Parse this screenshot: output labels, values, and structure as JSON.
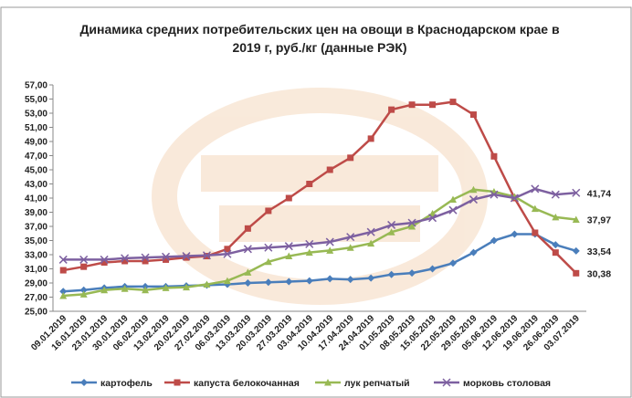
{
  "chart_data": {
    "type": "line",
    "title": "Динамика средних потребительских цен на овощи в Краснодарском крае в 2019 г, руб./кг (данные РЭК)",
    "categories": [
      "09.01.2019",
      "16.01.2019",
      "23.01.2019",
      "30.01.2019",
      "06.02.2019",
      "13.02.2019",
      "20.02.2019",
      "27.02.2019",
      "06.03.2019",
      "13.03.2019",
      "20.03.2019",
      "27.03.2019",
      "03.04.2019",
      "10.04.2019",
      "17.04.2019",
      "24.04.2019",
      "01.05.2019",
      "08.05.2019",
      "15.05.2019",
      "22.05.2019",
      "29.05.2019",
      "05.06.2019",
      "12.06.2019",
      "19.06.2019",
      "26.06.2019",
      "03.07.2019"
    ],
    "series": [
      {
        "name": "картофель",
        "color": "#4a7ebb",
        "marker": "diamond",
        "values": [
          27.8,
          28.0,
          28.3,
          28.5,
          28.5,
          28.5,
          28.6,
          28.7,
          28.8,
          29.0,
          29.1,
          29.2,
          29.3,
          29.6,
          29.5,
          29.7,
          30.2,
          30.4,
          31.0,
          31.8,
          33.3,
          35.0,
          35.9,
          35.9,
          34.4,
          33.54
        ],
        "value_labels": [
          null,
          null,
          null,
          null,
          null,
          null,
          null,
          null,
          null,
          null,
          null,
          null,
          null,
          null,
          null,
          null,
          null,
          null,
          null,
          null,
          null,
          null,
          null,
          null,
          null,
          "33,54"
        ]
      },
      {
        "name": "капуста белокочанная",
        "color": "#be4b48",
        "marker": "square",
        "values": [
          30.8,
          31.3,
          31.9,
          32.1,
          32.1,
          32.3,
          32.6,
          32.8,
          33.8,
          36.7,
          39.2,
          41.0,
          43.0,
          45.0,
          46.7,
          49.4,
          53.5,
          54.2,
          54.2,
          54.6,
          52.8,
          46.9,
          41.0,
          36.1,
          33.3,
          30.38
        ],
        "value_labels": [
          null,
          null,
          null,
          null,
          null,
          null,
          null,
          null,
          null,
          null,
          null,
          null,
          null,
          null,
          null,
          null,
          null,
          null,
          null,
          null,
          null,
          null,
          null,
          null,
          null,
          "30,38"
        ]
      },
      {
        "name": "лук репчатый",
        "color": "#98b954",
        "marker": "triangle",
        "values": [
          27.2,
          27.4,
          28.0,
          28.2,
          28.0,
          28.3,
          28.4,
          28.8,
          29.3,
          30.5,
          32.0,
          32.8,
          33.3,
          33.6,
          34.0,
          34.6,
          36.2,
          37.0,
          38.8,
          40.8,
          42.2,
          41.9,
          41.2,
          39.5,
          38.3,
          37.97
        ],
        "value_labels": [
          null,
          null,
          null,
          null,
          null,
          null,
          null,
          null,
          null,
          null,
          null,
          null,
          null,
          null,
          null,
          null,
          null,
          null,
          null,
          null,
          null,
          null,
          null,
          null,
          null,
          "37,97"
        ]
      },
      {
        "name": "морковь столовая",
        "color": "#7d60a0",
        "marker": "x",
        "values": [
          32.3,
          32.3,
          32.3,
          32.5,
          32.6,
          32.7,
          32.8,
          32.9,
          33.1,
          33.8,
          34.0,
          34.2,
          34.5,
          34.8,
          35.5,
          36.2,
          37.2,
          37.5,
          38.2,
          39.3,
          40.8,
          41.5,
          41.0,
          42.3,
          41.5,
          41.74
        ],
        "value_labels": [
          null,
          null,
          null,
          null,
          null,
          null,
          null,
          null,
          null,
          null,
          null,
          null,
          null,
          null,
          null,
          null,
          null,
          null,
          null,
          null,
          null,
          null,
          null,
          null,
          null,
          "41,74"
        ]
      }
    ],
    "ylim": [
      25,
      57
    ],
    "yticks": [
      {
        "value": 25,
        "label": "25,00"
      },
      {
        "value": 27,
        "label": "27,00"
      },
      {
        "value": 29,
        "label": "29,00"
      },
      {
        "value": 31,
        "label": "31,00"
      },
      {
        "value": 33,
        "label": "33,00"
      },
      {
        "value": 35,
        "label": "35,00"
      },
      {
        "value": 37,
        "label": "37,00"
      },
      {
        "value": 39,
        "label": "39,00"
      },
      {
        "value": 41,
        "label": "41,00"
      },
      {
        "value": 43,
        "label": "43,00"
      },
      {
        "value": 45,
        "label": "45,00"
      },
      {
        "value": 47,
        "label": "47,00"
      },
      {
        "value": 49,
        "label": "49,00"
      },
      {
        "value": 51,
        "label": "51,00"
      },
      {
        "value": 53,
        "label": "53,00"
      },
      {
        "value": 55,
        "label": "55,00"
      },
      {
        "value": 57,
        "label": "57,00"
      }
    ],
    "grid": false,
    "legend": "bottom"
  }
}
